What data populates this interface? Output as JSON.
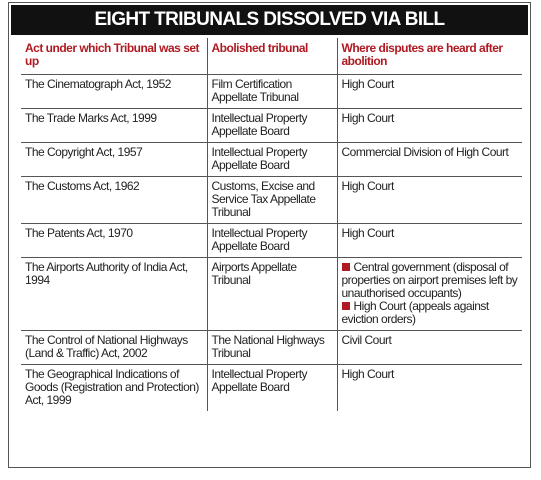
{
  "header": {
    "title": "EIGHT TRIBUNALS DISSOLVED VIA BILL"
  },
  "table": {
    "columns": [
      "Act under which Tribunal was set up",
      "Abolished tribunal",
      "Where disputes are heard after abolition"
    ],
    "rows": [
      [
        "The Cinematograph Act, 1952",
        "Film Certification Appellate Tribunal",
        "High Court"
      ],
      [
        "The Trade Marks Act, 1999",
        "Intellectual Property Appellate Board",
        "High Court"
      ],
      [
        "The Copyright Act, 1957",
        "Intellectual Property Appellate Board",
        "Commercial Division of High Court"
      ],
      [
        "The Customs Act, 1962",
        "Customs, Excise and Service Tax Appellate Tribunal",
        "High Court"
      ],
      [
        "The Patents Act, 1970",
        "Intellectual Property Appellate Board",
        "High Court"
      ],
      [
        "The Airports Authority of India Act, 1994",
        "Airports Appellate Tribunal",
        [
          "Central government (disposal of properties on airport premises left by unauthorised occupants)",
          "High Court (appeals against eviction orders)"
        ]
      ],
      [
        "The Control of National Highways (Land & Traffic) Act, 2002",
        "The National Highways Tribunal",
        "Civil Court"
      ],
      [
        "The Geographical Indications of Goods (Registration and Protection) Act, 1999",
        "Intellectual Property Appellate Board",
        "High Court"
      ]
    ]
  }
}
